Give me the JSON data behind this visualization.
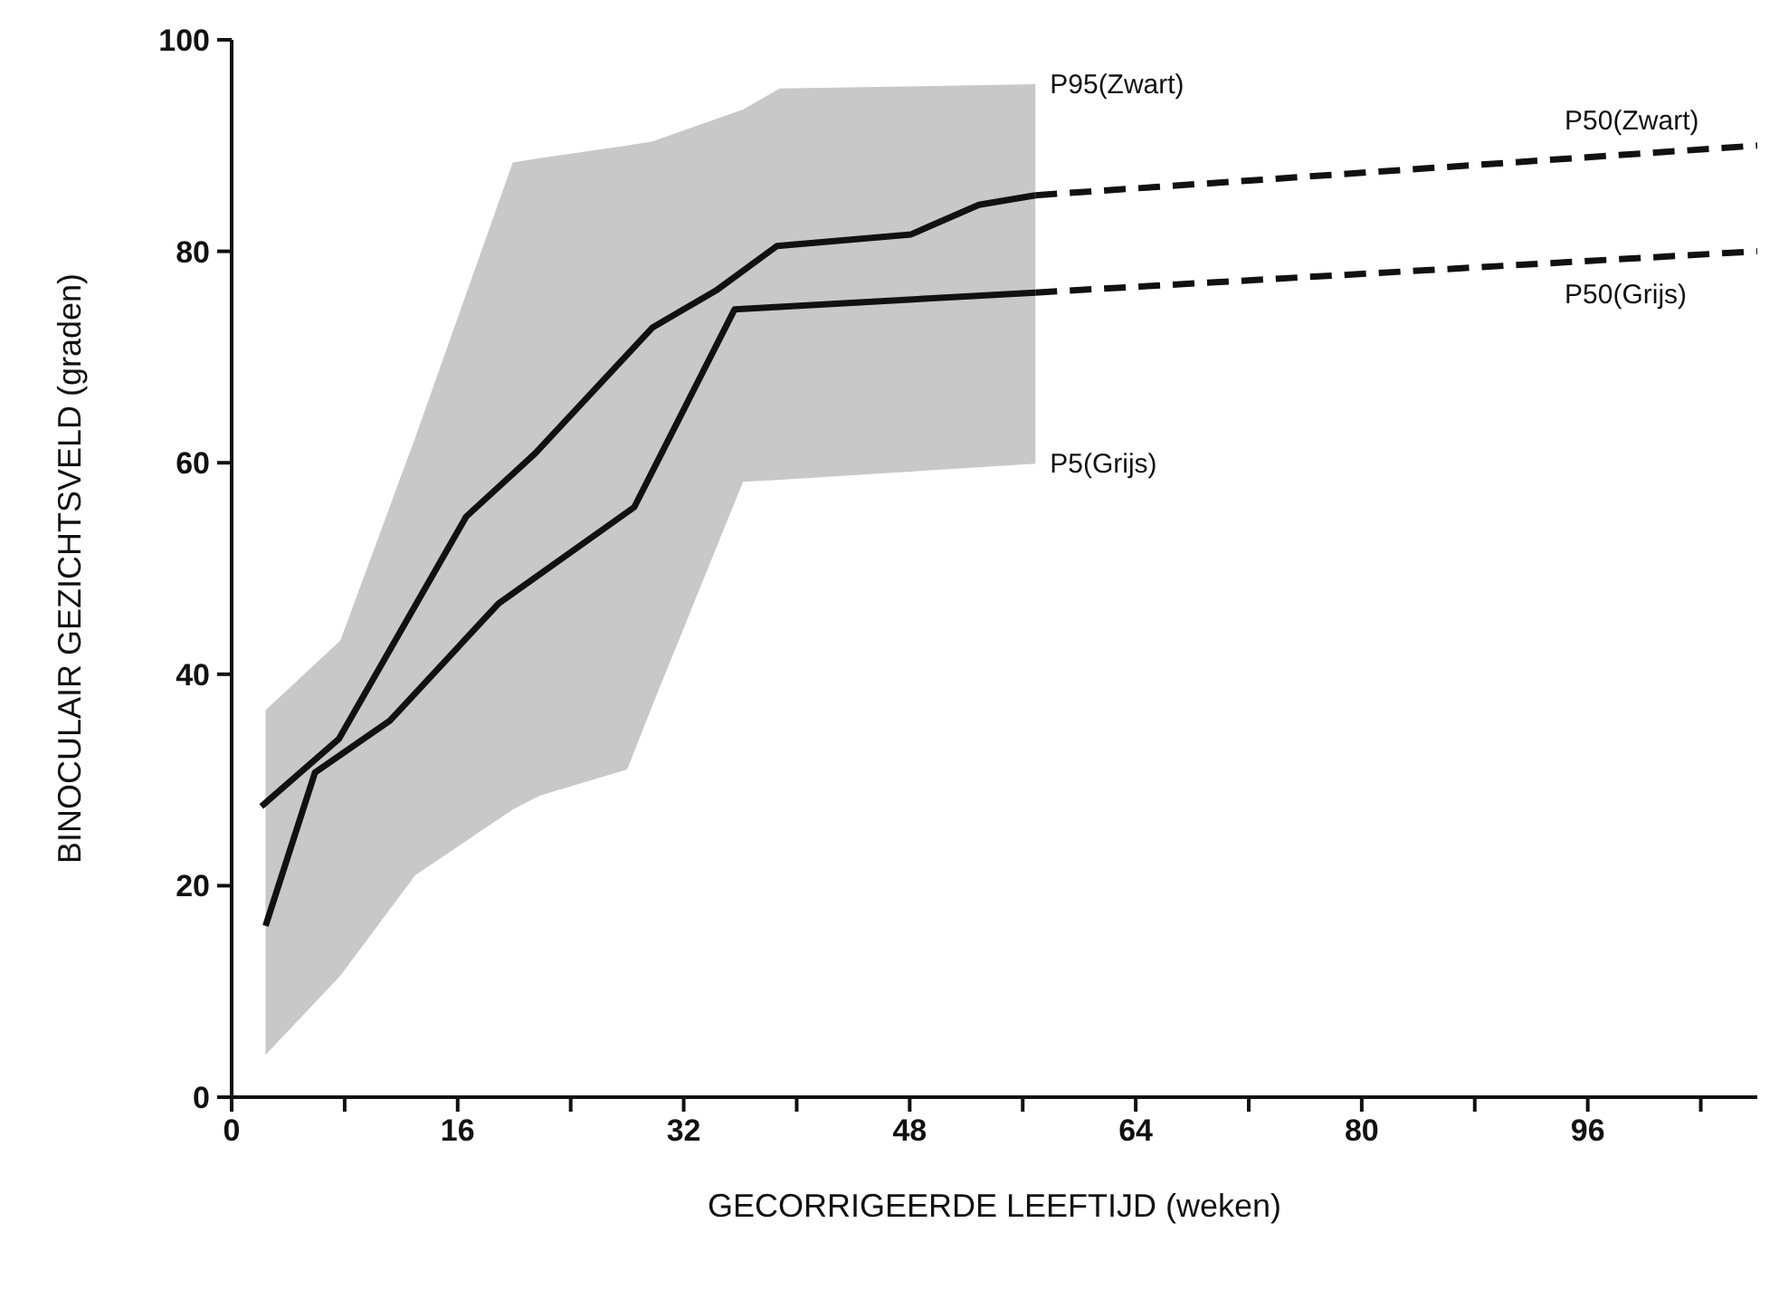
{
  "chart_data": {
    "type": "line",
    "xlabel": "GECORRIGEERDE LEEFTIJD (weken)",
    "ylabel": "BINOCULAIR GEZICHTSVELD (graden)",
    "xlim": [
      0,
      108
    ],
    "xticks": [
      0,
      {
        "value": 8,
        "label": null
      },
      16,
      {
        "value": 24,
        "label": null
      },
      32,
      {
        "value": 40,
        "label": null
      },
      48,
      {
        "value": 56,
        "label": null
      },
      64,
      {
        "value": 72,
        "label": null
      },
      80,
      {
        "value": 88,
        "label": null
      },
      96,
      {
        "value": 104,
        "label": null
      }
    ],
    "ylim": [
      0,
      100
    ],
    "yticks": [
      0,
      20,
      40,
      60,
      80,
      100
    ],
    "marker": "none",
    "series": [
      {
        "type": "line",
        "color": "#c8c8c8",
        "x": [
          2.4,
          7.7,
          13,
          19.9,
          21.8,
          28,
          29.8,
          36.2,
          38.8,
          56.9
        ],
        "values": [
          null,
          null,
          null,
          null,
          null,
          null,
          null,
          null,
          null,
          null
        ],
        "upper": [
          36.6,
          43.2,
          62.4,
          88.4,
          88.8,
          90.0,
          90.4,
          93.4,
          95.4,
          95.8
        ],
        "lower": [
          4.0,
          11.5,
          21,
          27.2,
          28.5,
          31,
          37.1,
          58.2,
          58.4,
          59.9
        ]
      },
      {
        "color": "#111111",
        "line_style": "solid",
        "x": [
          2.1,
          7.6,
          16.6,
          21.5,
          29.8,
          34.3,
          38.6,
          48.1,
          52.9,
          56.9
        ],
        "values": [
          27.5,
          33.9,
          54.9,
          60.9,
          72.8,
          76.3,
          80.5,
          81.6,
          84.4,
          85.3
        ]
      },
      {
        "color": "#111111",
        "line_style": "dashed",
        "x": [
          56.9,
          108
        ],
        "values": [
          85.3,
          90
        ]
      },
      {
        "color": "#111111",
        "line_style": "solid",
        "x": [
          2.4,
          5.9,
          11.2,
          18.9,
          28.5,
          35.6,
          56.9
        ],
        "values": [
          16.2,
          30.7,
          35.6,
          46.7,
          55.8,
          74.5,
          76.1
        ]
      },
      {
        "color": "#111111",
        "line_style": "dashed",
        "x": [
          56.9,
          108
        ],
        "values": [
          76.1,
          80
        ]
      }
    ],
    "annotations": [
      "P95(Zwart)",
      "P50(Zwart)",
      "P50(Grijs)",
      "P5(Grijs)"
    ]
  }
}
